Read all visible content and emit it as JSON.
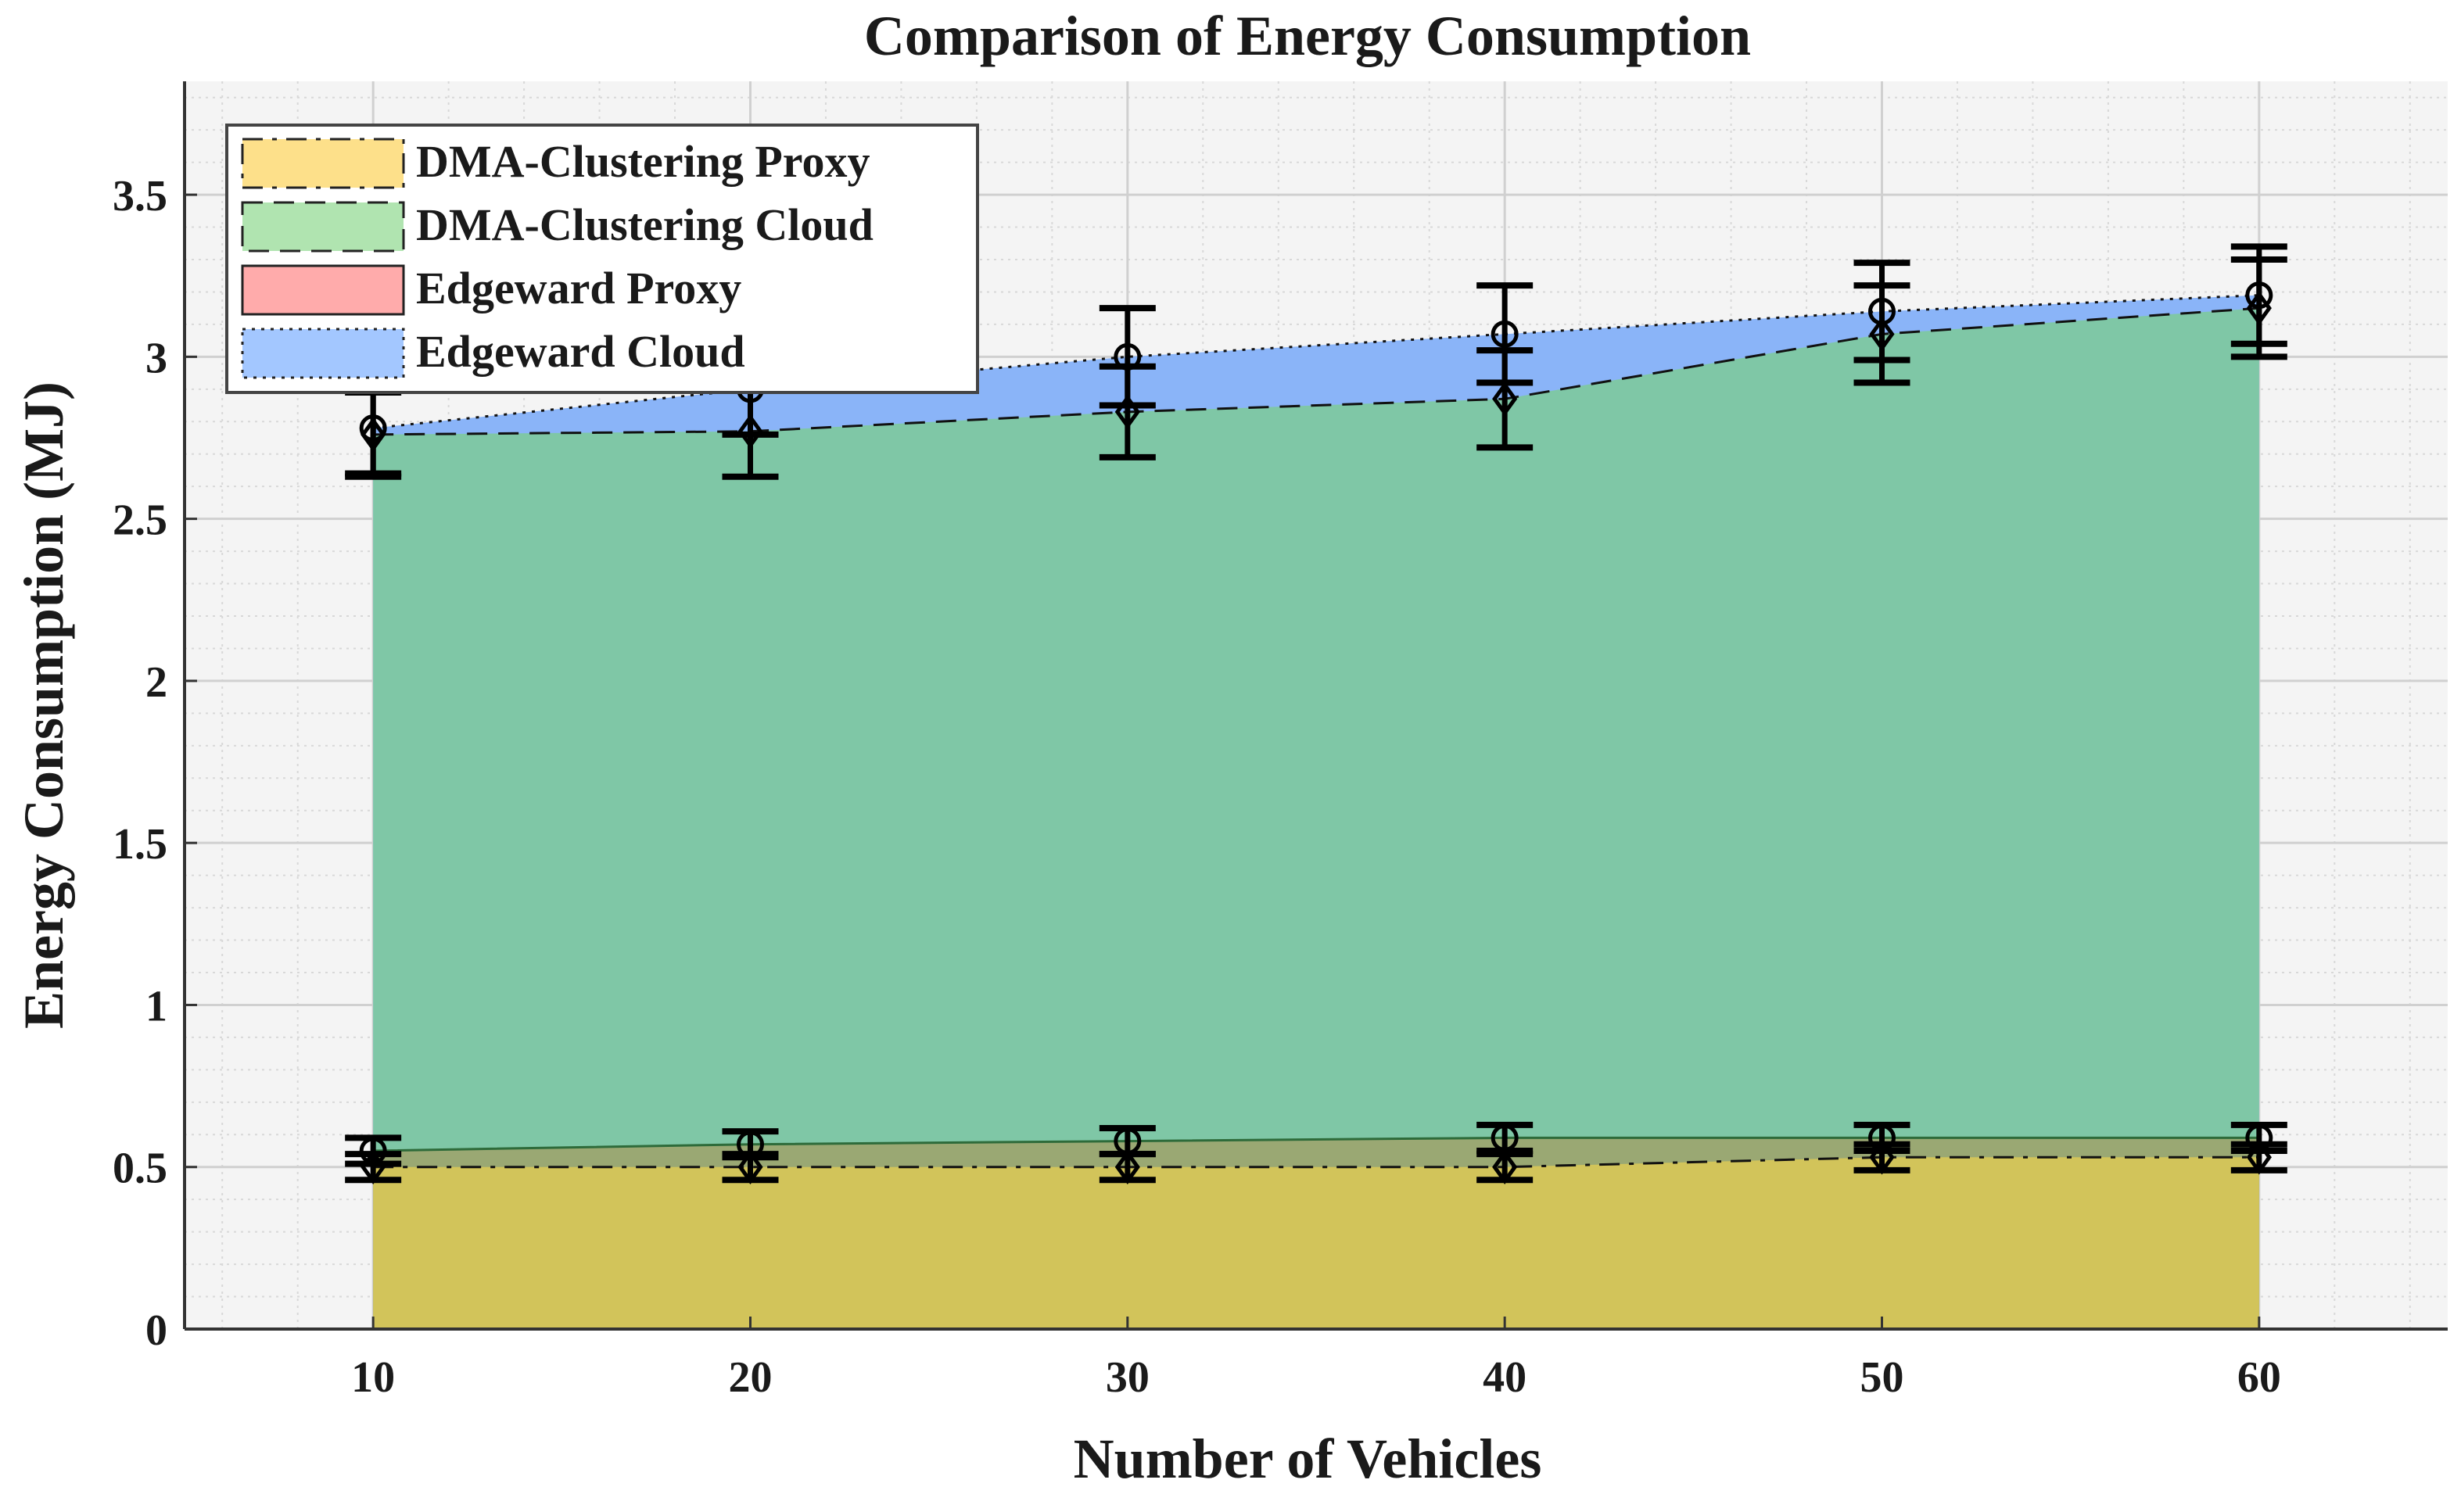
{
  "chart_data": {
    "type": "area",
    "title": "Comparison of Energy Consumption",
    "xlabel": "Number of Vehicles",
    "ylabel": "Energy Consumption (MJ)",
    "x": [
      10,
      20,
      30,
      40,
      50,
      60
    ],
    "xlim": [
      5,
      65
    ],
    "ylim": [
      0,
      3.85
    ],
    "xticks": [
      10,
      20,
      30,
      40,
      50,
      60
    ],
    "yticks": [
      0,
      0.5,
      1,
      1.5,
      2,
      2.5,
      3,
      3.5
    ],
    "ytick_labels": [
      "0",
      "0.5",
      "1",
      "1.5",
      "2",
      "2.5",
      "3",
      "3.5"
    ],
    "grid": true,
    "minor_grid": true,
    "legend_position": "top-left",
    "series": [
      {
        "name": "Edgeward Cloud",
        "values": [
          2.78,
          2.9,
          3.0,
          3.07,
          3.14,
          3.19
        ],
        "errors": [
          0.14,
          0.14,
          0.15,
          0.15,
          0.15,
          0.15
        ],
        "marker": "circle",
        "line_style": "dotted",
        "fill": "#8ab4f8"
      },
      {
        "name": "DMA-Clustering Cloud",
        "values": [
          2.76,
          2.77,
          2.83,
          2.87,
          3.07,
          3.15
        ],
        "errors": [
          0.13,
          0.14,
          0.14,
          0.15,
          0.15,
          0.15
        ],
        "marker": "diamond",
        "line_style": "dashed",
        "fill": "#7fc7a6"
      },
      {
        "name": "Edgeward Proxy",
        "values": [
          0.55,
          0.57,
          0.58,
          0.59,
          0.59,
          0.59
        ],
        "errors": [
          0.04,
          0.04,
          0.04,
          0.04,
          0.04,
          0.04
        ],
        "marker": "circle",
        "line_style": "solid",
        "fill": "#9aa873"
      },
      {
        "name": "DMA-Clustering Proxy",
        "values": [
          0.5,
          0.5,
          0.5,
          0.5,
          0.53,
          0.53
        ],
        "errors": [
          0.04,
          0.04,
          0.04,
          0.04,
          0.04,
          0.04
        ],
        "marker": "diamond",
        "line_style": "dashdot",
        "fill": "#d2c45a"
      }
    ],
    "legend": [
      {
        "label": "DMA-Clustering Proxy",
        "swatch": "#fde08a",
        "line_style": "dashdot"
      },
      {
        "label": "DMA-Clustering Cloud",
        "swatch": "#b0e4b0",
        "line_style": "dashed"
      },
      {
        "label": "Edgeward Proxy",
        "swatch": "#ffabab",
        "line_style": "solid"
      },
      {
        "label": "Edgeward Cloud",
        "swatch": "#a3c7ff",
        "line_style": "dotted"
      }
    ]
  }
}
